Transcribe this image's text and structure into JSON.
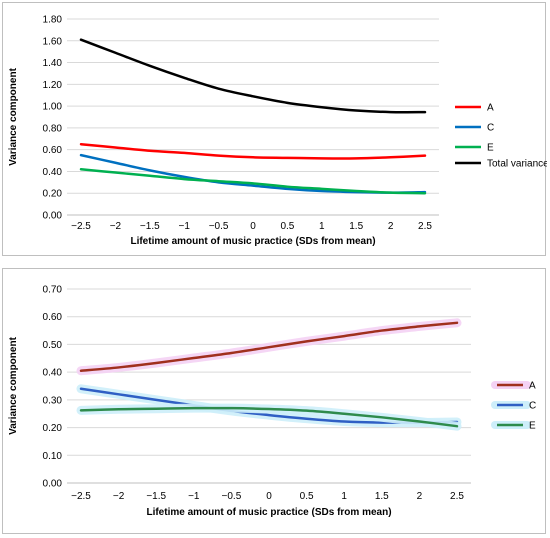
{
  "chart_data": [
    {
      "type": "line",
      "xlabel": "Lifetime amount of music practice (SDs from mean)",
      "ylabel": "Variance component",
      "xlim": [
        -2.5,
        2.5
      ],
      "ylim": [
        0.0,
        1.8
      ],
      "x_ticks": [
        "−2.5",
        "−2",
        "−1.5",
        "−1",
        "−0.5",
        "0",
        "0.5",
        "1",
        "1.5",
        "2",
        "2.5"
      ],
      "y_ticks": [
        "0.00",
        "0.20",
        "0.40",
        "0.60",
        "0.80",
        "1.00",
        "1.20",
        "1.40",
        "1.60",
        "1.80"
      ],
      "grid": true,
      "legend_position": "right",
      "x": [
        -2.5,
        -2.0,
        -1.5,
        -1.0,
        -0.5,
        0.0,
        0.5,
        1.0,
        1.5,
        2.0,
        2.5
      ],
      "series": [
        {
          "name": "A",
          "color": "#ff0000",
          "values": [
            0.65,
            0.62,
            0.59,
            0.57,
            0.545,
            0.53,
            0.525,
            0.52,
            0.52,
            0.53,
            0.545
          ]
        },
        {
          "name": "C",
          "color": "#0070c0",
          "values": [
            0.55,
            0.48,
            0.41,
            0.35,
            0.3,
            0.27,
            0.24,
            0.22,
            0.21,
            0.205,
            0.21
          ]
        },
        {
          "name": "E",
          "color": "#00b050",
          "values": [
            0.42,
            0.39,
            0.36,
            0.33,
            0.31,
            0.29,
            0.26,
            0.24,
            0.22,
            0.205,
            0.2
          ]
        },
        {
          "name": "Total variance",
          "color": "#000000",
          "values": [
            1.61,
            1.49,
            1.37,
            1.26,
            1.16,
            1.09,
            1.03,
            0.99,
            0.96,
            0.945,
            0.945
          ]
        }
      ]
    },
    {
      "type": "line",
      "xlabel": "Lifetime amount of music practice (SDs from mean)",
      "ylabel": "Variance component",
      "xlim": [
        -2.5,
        2.5
      ],
      "ylim": [
        0.0,
        0.7
      ],
      "x_ticks": [
        "−2.5",
        "−2",
        "−1.5",
        "−1",
        "−0.5",
        "0",
        "0.5",
        "1",
        "1.5",
        "2",
        "2.5"
      ],
      "y_ticks": [
        "0.00",
        "0.10",
        "0.20",
        "0.30",
        "0.40",
        "0.50",
        "0.60",
        "0.70"
      ],
      "grid": true,
      "legend_position": "right",
      "x": [
        -2.5,
        -2.0,
        -1.5,
        -1.0,
        -0.5,
        0.0,
        0.5,
        1.0,
        1.5,
        2.0,
        2.5
      ],
      "series": [
        {
          "name": "A",
          "color": "#a0301e",
          "halo": "#f4d2f4",
          "values": [
            0.405,
            0.417,
            0.433,
            0.451,
            0.469,
            0.49,
            0.511,
            0.53,
            0.55,
            0.565,
            0.578
          ]
        },
        {
          "name": "C",
          "color": "#2f5fc4",
          "halo": "#cdeefa",
          "values": [
            0.34,
            0.32,
            0.3,
            0.28,
            0.26,
            0.245,
            0.232,
            0.222,
            0.218,
            0.218,
            0.22
          ]
        },
        {
          "name": "E",
          "color": "#2e8b4c",
          "halo": "#cdeefa",
          "values": [
            0.262,
            0.266,
            0.268,
            0.27,
            0.27,
            0.267,
            0.261,
            0.25,
            0.237,
            0.222,
            0.205
          ]
        }
      ]
    }
  ]
}
